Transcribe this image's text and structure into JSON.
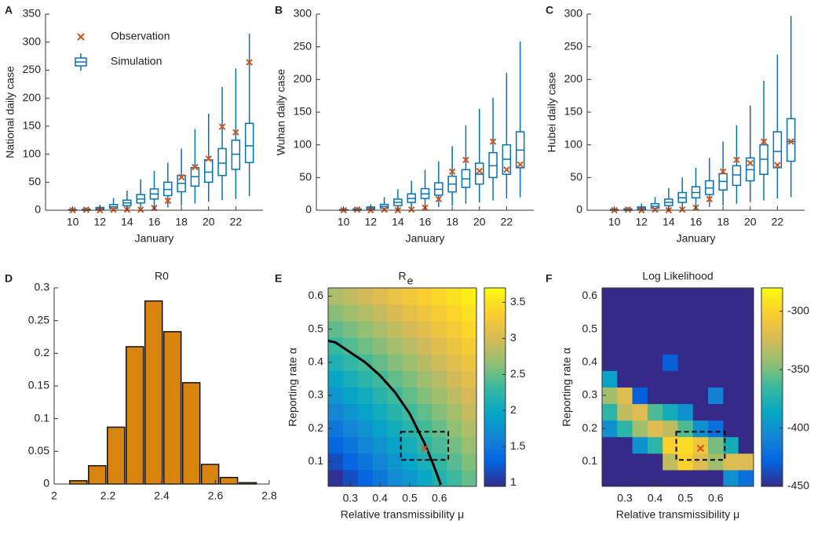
{
  "chart_data": [
    {
      "type": "box",
      "label": "A",
      "ylabel": "National daily case",
      "xlabel": "January",
      "xlim": [
        8,
        24
      ],
      "xticks": [
        10,
        12,
        14,
        16,
        18,
        20,
        22
      ],
      "ylim": [
        0,
        350
      ],
      "yticks": [
        0,
        50,
        100,
        150,
        200,
        250,
        300,
        350
      ],
      "legend": "upper left",
      "x": [
        10,
        11,
        12,
        13,
        14,
        15,
        16,
        17,
        18,
        19,
        20,
        21,
        22,
        23
      ],
      "series": [
        {
          "name": "Observation",
          "color": "#d95319",
          "values": [
            0,
            1,
            0,
            1,
            1,
            1,
            4,
            17,
            59,
            77,
            92,
            149,
            139,
            264
          ]
        },
        {
          "name": "Simulation",
          "color": "#0072bd",
          "median": [
            0,
            1,
            3,
            6,
            13,
            20,
            29,
            37,
            48,
            60,
            68,
            84,
            100,
            115
          ],
          "q1": [
            0,
            0,
            1,
            3,
            8,
            13,
            20,
            26,
            33,
            43,
            50,
            62,
            73,
            85
          ],
          "q3": [
            1,
            2,
            5,
            10,
            18,
            28,
            38,
            50,
            62,
            76,
            90,
            110,
            125,
            155
          ],
          "low": [
            0,
            0,
            0,
            0,
            1,
            2,
            3,
            5,
            8,
            12,
            15,
            18,
            20,
            25
          ],
          "high": [
            3,
            5,
            10,
            22,
            35,
            55,
            70,
            85,
            110,
            145,
            172,
            220,
            253,
            315
          ]
        }
      ]
    },
    {
      "type": "box",
      "label": "B",
      "ylabel": "Wuhan daily case",
      "xlabel": "January",
      "xlim": [
        8,
        24
      ],
      "xticks": [
        10,
        12,
        14,
        16,
        18,
        20,
        22
      ],
      "ylim": [
        0,
        300
      ],
      "yticks": [
        0,
        50,
        100,
        150,
        200,
        250,
        300
      ],
      "x": [
        10,
        11,
        12,
        13,
        14,
        15,
        16,
        17,
        18,
        19,
        20,
        21,
        22,
        23
      ],
      "series": [
        {
          "color": "#d95319",
          "values": [
            0,
            1,
            0,
            1,
            0,
            1,
            4,
            17,
            59,
            77,
            60,
            105,
            62,
            70
          ]
        },
        {
          "color": "#0072bd",
          "median": [
            0,
            1,
            3,
            6,
            12,
            18,
            25,
            32,
            40,
            48,
            55,
            68,
            78,
            92
          ],
          "q1": [
            0,
            0,
            1,
            3,
            7,
            12,
            18,
            23,
            28,
            35,
            40,
            50,
            55,
            65
          ],
          "q3": [
            1,
            2,
            5,
            9,
            17,
            25,
            33,
            42,
            52,
            62,
            72,
            88,
            100,
            120
          ],
          "low": [
            0,
            0,
            0,
            0,
            1,
            2,
            3,
            5,
            7,
            10,
            12,
            15,
            18,
            20
          ],
          "high": [
            3,
            5,
            9,
            20,
            32,
            45,
            62,
            75,
            98,
            130,
            155,
            172,
            210,
            258
          ]
        }
      ]
    },
    {
      "type": "box",
      "label": "C",
      "ylabel": "Hubei daily case",
      "xlabel": "January",
      "xlim": [
        8,
        24
      ],
      "xticks": [
        10,
        12,
        14,
        16,
        18,
        20,
        22
      ],
      "ylim": [
        0,
        300
      ],
      "yticks": [
        0,
        50,
        100,
        150,
        200,
        250,
        300
      ],
      "x": [
        10,
        11,
        12,
        13,
        14,
        15,
        16,
        17,
        18,
        19,
        20,
        21,
        22,
        23
      ],
      "series": [
        {
          "color": "#d95319",
          "values": [
            0,
            1,
            0,
            1,
            0,
            1,
            4,
            17,
            59,
            77,
            72,
            105,
            69,
            105
          ]
        },
        {
          "color": "#0072bd",
          "median": [
            0,
            1,
            3,
            6,
            12,
            19,
            27,
            34,
            44,
            54,
            62,
            78,
            90,
            105
          ],
          "q1": [
            0,
            0,
            1,
            3,
            7,
            12,
            19,
            24,
            31,
            38,
            45,
            55,
            65,
            75
          ],
          "q3": [
            1,
            2,
            5,
            10,
            17,
            27,
            36,
            45,
            56,
            68,
            80,
            100,
            120,
            140
          ],
          "low": [
            0,
            0,
            0,
            0,
            1,
            2,
            3,
            5,
            7,
            10,
            12,
            15,
            18,
            20
          ],
          "high": [
            3,
            5,
            10,
            20,
            34,
            50,
            65,
            80,
            105,
            130,
            160,
            198,
            238,
            297
          ]
        }
      ]
    },
    {
      "type": "histogram",
      "label": "D",
      "title": "R0",
      "color": "#d9840f",
      "xlim": [
        2,
        2.8
      ],
      "xticks": [
        2,
        2.2,
        2.4,
        2.6,
        2.8
      ],
      "ylim": [
        0,
        0.3
      ],
      "yticks": [
        0,
        0.05,
        0.1,
        0.15,
        0.2,
        0.25,
        0.3
      ],
      "bins": [
        2.055,
        2.125,
        2.195,
        2.265,
        2.335,
        2.405,
        2.475,
        2.545,
        2.615,
        2.685,
        2.755
      ],
      "values": [
        0.005,
        0.028,
        0.087,
        0.21,
        0.28,
        0.233,
        0.155,
        0.03,
        0.01,
        0.002
      ]
    },
    {
      "type": "heatmap",
      "label": "E",
      "title": "R",
      "title_subscript": "e",
      "xlabel": "Relative transmissibility μ",
      "ylabel": "Reporting rate α",
      "xlim": [
        0.225,
        0.725
      ],
      "xticks": [
        0.3,
        0.4,
        0.5,
        0.6
      ],
      "ylim": [
        0.025,
        0.625
      ],
      "yticks": [
        0.1,
        0.2,
        0.3,
        0.4,
        0.5,
        0.6
      ],
      "x": [
        0.25,
        0.3,
        0.35,
        0.4,
        0.45,
        0.5,
        0.55,
        0.6,
        0.65,
        0.7
      ],
      "y": [
        0.05,
        0.1,
        0.15,
        0.2,
        0.25,
        0.3,
        0.35,
        0.4,
        0.45,
        0.5,
        0.55,
        0.6
      ],
      "z": [
        [
          1.0,
          1.17,
          1.33,
          1.5,
          1.67,
          1.83,
          2.0,
          2.17,
          2.33,
          2.5
        ],
        [
          1.16,
          1.32,
          1.48,
          1.64,
          1.8,
          1.96,
          2.12,
          2.28,
          2.44,
          2.6
        ],
        [
          1.33,
          1.48,
          1.63,
          1.78,
          1.94,
          2.09,
          2.24,
          2.4,
          2.55,
          2.7
        ],
        [
          1.49,
          1.64,
          1.78,
          1.93,
          2.07,
          2.22,
          2.36,
          2.51,
          2.65,
          2.8
        ],
        [
          1.65,
          1.79,
          1.93,
          2.07,
          2.21,
          2.35,
          2.48,
          2.62,
          2.76,
          2.9
        ],
        [
          1.82,
          1.95,
          2.08,
          2.21,
          2.34,
          2.48,
          2.61,
          2.74,
          2.87,
          3.0
        ],
        [
          1.98,
          2.11,
          2.23,
          2.35,
          2.48,
          2.6,
          2.73,
          2.85,
          2.98,
          3.1
        ],
        [
          2.14,
          2.26,
          2.38,
          2.5,
          2.61,
          2.73,
          2.85,
          2.97,
          3.09,
          3.2
        ],
        [
          2.31,
          2.42,
          2.53,
          2.64,
          2.75,
          2.86,
          2.97,
          3.08,
          3.19,
          3.3
        ],
        [
          2.47,
          2.58,
          2.68,
          2.78,
          2.89,
          2.99,
          3.09,
          3.2,
          3.3,
          3.4
        ],
        [
          2.64,
          2.73,
          2.83,
          2.92,
          3.02,
          3.12,
          3.21,
          3.31,
          3.41,
          3.5
        ],
        [
          2.8,
          2.89,
          2.98,
          3.07,
          3.16,
          3.25,
          3.34,
          3.43,
          3.51,
          3.6
        ]
      ],
      "clim": [
        0.95,
        3.7
      ],
      "cticks": [
        1,
        1.5,
        2,
        2.5,
        3,
        3.5
      ],
      "colormap": [
        "#352a87",
        "#0363e1",
        "#1485d4",
        "#06a7c6",
        "#38b99e",
        "#92bf73",
        "#d9ba56",
        "#fcce2e",
        "#f9fb0e"
      ],
      "curve": {
        "color": "#000000",
        "x": [
          0.225,
          0.25,
          0.3,
          0.35,
          0.4,
          0.45,
          0.5,
          0.55,
          0.58,
          0.605
        ],
        "y": [
          0.465,
          0.46,
          0.43,
          0.4,
          0.36,
          0.31,
          0.245,
          0.155,
          0.09,
          0.03
        ]
      },
      "highlight": {
        "x": [
          0.47,
          0.63
        ],
        "y": [
          0.105,
          0.19
        ]
      },
      "marker": {
        "color": "#d95319",
        "x": 0.55,
        "y": 0.14
      }
    },
    {
      "type": "heatmap",
      "label": "F",
      "title": "Log Likelihood",
      "xlabel": "Relative transmissibility μ",
      "ylabel": "Reporting rate α",
      "xlim": [
        0.225,
        0.725
      ],
      "xticks": [
        0.3,
        0.4,
        0.5,
        0.6
      ],
      "ylim": [
        0.025,
        0.625
      ],
      "yticks": [
        0.1,
        0.2,
        0.3,
        0.4,
        0.5,
        0.6
      ],
      "x": [
        0.25,
        0.3,
        0.35,
        0.4,
        0.45,
        0.5,
        0.55,
        0.6,
        0.65,
        0.7
      ],
      "y": [
        0.05,
        0.1,
        0.15,
        0.2,
        0.25,
        0.3,
        0.35,
        0.4,
        0.45,
        0.5,
        0.55,
        0.6
      ],
      "z": [
        [
          -450,
          -450,
          -450,
          -450,
          -450,
          -450,
          -450,
          -450,
          -400,
          -420
        ],
        [
          -450,
          -450,
          -450,
          -450,
          -330,
          -300,
          -320,
          -340,
          -320,
          -320
        ],
        [
          -450,
          -450,
          -400,
          -370,
          -300,
          -295,
          -310,
          -350,
          -380,
          -450
        ],
        [
          -400,
          -370,
          -340,
          -320,
          -330,
          -360,
          -400,
          -420,
          -450,
          -450
        ],
        [
          -370,
          -330,
          -320,
          -360,
          -380,
          -400,
          -450,
          -450,
          -450,
          -450
        ],
        [
          -340,
          -320,
          -430,
          -450,
          -450,
          -450,
          -450,
          -410,
          -450,
          -450
        ],
        [
          -390,
          -450,
          -450,
          -450,
          -450,
          -450,
          -450,
          -450,
          -450,
          -450
        ],
        [
          -450,
          -450,
          -450,
          -450,
          -430,
          -450,
          -450,
          -450,
          -450,
          -450
        ],
        [
          -450,
          -450,
          -450,
          -450,
          -450,
          -450,
          -450,
          -450,
          -450,
          -450
        ],
        [
          -450,
          -450,
          -450,
          -450,
          -450,
          -450,
          -450,
          -450,
          -450,
          -450
        ],
        [
          -450,
          -450,
          -450,
          -450,
          -450,
          -450,
          -450,
          -450,
          -450,
          -450
        ],
        [
          -450,
          -450,
          -450,
          -450,
          -450,
          -450,
          -450,
          -450,
          -450,
          -450
        ]
      ],
      "clim": [
        -450,
        -280
      ],
      "cticks": [
        -300,
        -350,
        -400,
        -450
      ],
      "colormap": [
        "#352a87",
        "#0363e1",
        "#1485d4",
        "#06a7c6",
        "#38b99e",
        "#92bf73",
        "#d9ba56",
        "#fcce2e",
        "#f9fb0e"
      ],
      "highlight": {
        "x": [
          0.47,
          0.63
        ],
        "y": [
          0.105,
          0.19
        ]
      },
      "marker": {
        "color": "#d95319",
        "x": 0.55,
        "y": 0.14
      }
    }
  ]
}
